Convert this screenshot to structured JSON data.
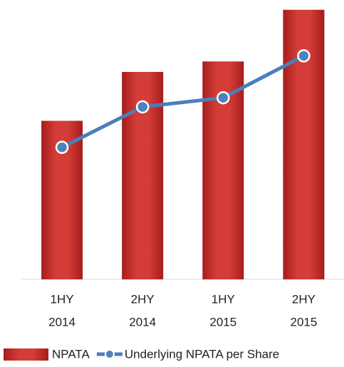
{
  "chart_data": {
    "type": "bar-line",
    "categories": [
      [
        "1HY",
        "2014"
      ],
      [
        "2HY",
        "2014"
      ],
      [
        "1HY",
        "2015"
      ],
      [
        "2HY",
        "2015"
      ]
    ],
    "series": [
      {
        "name": "NPATA",
        "type": "bar",
        "color": "#c9302c",
        "values": [
          227,
          297,
          312,
          386
        ]
      },
      {
        "name": "Underlying NPATA per Share",
        "type": "line",
        "color": "#4a7ebb",
        "values": [
          189,
          247,
          260,
          320
        ]
      }
    ],
    "ylim": [
      0,
      400
    ]
  }
}
